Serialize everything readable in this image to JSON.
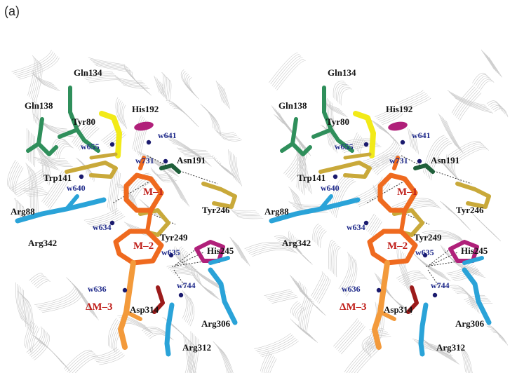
{
  "panel_label": "(a)",
  "colors": {
    "green": "#2f8f5b",
    "yellow": "#f2ea18",
    "ochre": "#c9a93a",
    "orange": "#ef6a1f",
    "orange_light": "#f39a3b",
    "blue": "#2aa3d8",
    "magenta": "#b0207a",
    "dark_red": "#9c1b1b",
    "water": "#1a1a6e",
    "label_black": "#111111",
    "label_blue": "#1f2a8a",
    "label_red": "#c0201b"
  },
  "stereo_views": [
    {
      "view": "left",
      "labels": {
        "gln134": "Gln134",
        "gln138": "Gln138",
        "his192": "His192",
        "tyr80": "Tyr80",
        "w641": "w641",
        "w655": "w655",
        "w731": "w731",
        "asn191": "Asn191",
        "trp141": "Trp141",
        "w640": "w640",
        "m1": "M–1",
        "arg88": "Arg88",
        "tyr246": "Tyr246",
        "w634": "w634",
        "tyr249": "Tyr249",
        "arg342": "Arg342",
        "his245": "His245",
        "m2": "M–2",
        "w635": "w635",
        "w636": "w636",
        "w744": "w744",
        "dm3": "ΔM–3",
        "asp314": "Asp314",
        "arg306": "Arg306",
        "arg312": "Arg312"
      }
    },
    {
      "view": "right",
      "labels": {
        "gln134": "Gln134",
        "gln138": "Gln138",
        "his192": "His192",
        "tyr80": "Tyr80",
        "w641": "w641",
        "w655": "w655",
        "w731": "w731",
        "asn191": "Asn191",
        "trp141": "Trp141",
        "w640": "w640",
        "m1": "M–1",
        "arg88": "Arg88",
        "tyr246": "Tyr246",
        "w634": "w634",
        "tyr249": "Tyr249",
        "arg342": "Arg342",
        "his245": "His245",
        "m2": "M–2",
        "w635": "w635",
        "w636": "w636",
        "w744": "w744",
        "dm3": "ΔM–3",
        "asp314": "Asp314",
        "arg306": "Arg306",
        "arg312": "Arg312"
      }
    }
  ]
}
